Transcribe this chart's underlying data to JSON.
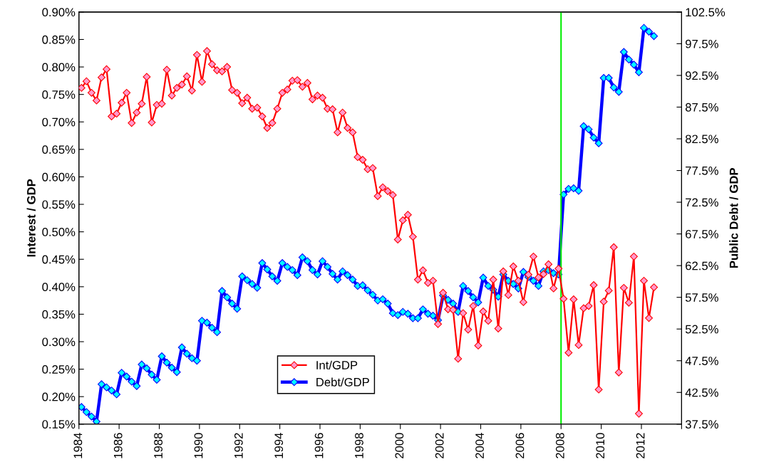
{
  "chart_data": {
    "type": "line",
    "xlabel": null,
    "ylabel": "Interest / GDP",
    "y2label": "Public Debt / GDP",
    "x": [
      1984.125,
      1984.375,
      1984.625,
      1984.875,
      1985.125,
      1985.375,
      1985.625,
      1985.875,
      1986.125,
      1986.375,
      1986.625,
      1986.875,
      1987.125,
      1987.375,
      1987.625,
      1987.875,
      1988.125,
      1988.375,
      1988.625,
      1988.875,
      1989.125,
      1989.375,
      1989.625,
      1989.875,
      1990.125,
      1990.375,
      1990.625,
      1990.875,
      1991.125,
      1991.375,
      1991.625,
      1991.875,
      1992.125,
      1992.375,
      1992.625,
      1992.875,
      1993.125,
      1993.375,
      1993.625,
      1993.875,
      1994.125,
      1994.375,
      1994.625,
      1994.875,
      1995.125,
      1995.375,
      1995.625,
      1995.875,
      1996.125,
      1996.375,
      1996.625,
      1996.875,
      1997.125,
      1997.375,
      1997.625,
      1997.875,
      1998.125,
      1998.375,
      1998.625,
      1998.875,
      1999.125,
      1999.375,
      1999.625,
      1999.875,
      2000.125,
      2000.375,
      2000.625,
      2000.875,
      2001.125,
      2001.375,
      2001.625,
      2001.875,
      2002.125,
      2002.375,
      2002.625,
      2002.875,
      2003.125,
      2003.375,
      2003.625,
      2003.875,
      2004.125,
      2004.375,
      2004.625,
      2004.875,
      2005.125,
      2005.375,
      2005.625,
      2005.875,
      2006.125,
      2006.375,
      2006.625,
      2006.875,
      2007.125,
      2007.375,
      2007.625,
      2007.875,
      2008.125,
      2008.375,
      2008.625,
      2008.875,
      2009.125,
      2009.375,
      2009.625,
      2009.875,
      2010.125,
      2010.375,
      2010.625,
      2010.875,
      2011.125,
      2011.375,
      2011.625,
      2011.875,
      2012.125,
      2012.375,
      2012.625
    ],
    "series": [
      {
        "name": "Int/GDP",
        "color": "#ff0000",
        "values": [
          0.762,
          0.774,
          0.753,
          0.739,
          0.781,
          0.796,
          0.71,
          0.715,
          0.735,
          0.753,
          0.698,
          0.717,
          0.733,
          0.782,
          0.699,
          0.731,
          0.733,
          0.795,
          0.748,
          0.762,
          0.768,
          0.783,
          0.757,
          0.822,
          0.773,
          0.829,
          0.805,
          0.794,
          0.792,
          0.8,
          0.758,
          0.753,
          0.734,
          0.744,
          0.724,
          0.726,
          0.71,
          0.689,
          0.698,
          0.724,
          0.753,
          0.759,
          0.775,
          0.776,
          0.764,
          0.771,
          0.741,
          0.748,
          0.744,
          0.724,
          0.723,
          0.681,
          0.717,
          0.689,
          0.681,
          0.636,
          0.631,
          0.614,
          0.616,
          0.565,
          0.581,
          0.574,
          0.567,
          0.486,
          0.521,
          0.531,
          0.491,
          0.413,
          0.43,
          0.407,
          0.411,
          0.332,
          0.389,
          0.359,
          0.358,
          0.269,
          0.352,
          0.322,
          0.365,
          0.293,
          0.355,
          0.338,
          0.413,
          0.324,
          0.428,
          0.385,
          0.437,
          0.411,
          0.372,
          0.422,
          0.455,
          0.417,
          0.423,
          0.441,
          0.397,
          0.433,
          0.378,
          0.28,
          0.377,
          0.294,
          0.361,
          0.365,
          0.403,
          0.213,
          0.373,
          0.393,
          0.472,
          0.244,
          0.398,
          0.371,
          0.455,
          0.169,
          0.411,
          0.343,
          0.399
        ]
      },
      {
        "name": "Debt/GDP",
        "color": "#0000ff",
        "axis": "y2",
        "values": [
          40.2,
          39.4,
          38.7,
          37.9,
          43.8,
          43.3,
          42.8,
          42.2,
          45.6,
          45.0,
          44.2,
          43.5,
          46.9,
          46.3,
          45.3,
          44.5,
          48.2,
          47.2,
          46.4,
          45.7,
          49.6,
          48.6,
          47.9,
          47.5,
          53.8,
          53.5,
          52.7,
          52.0,
          58.5,
          57.5,
          56.5,
          55.7,
          60.8,
          60.2,
          59.6,
          59.0,
          62.9,
          61.9,
          60.8,
          60.1,
          62.9,
          62.3,
          61.8,
          61.0,
          63.8,
          63.2,
          61.8,
          61.1,
          63.2,
          62.3,
          61.2,
          60.3,
          61.6,
          61.0,
          60.3,
          59.3,
          59.4,
          58.6,
          57.9,
          57.0,
          57.2,
          56.5,
          55.0,
          54.7,
          55.2,
          54.9,
          54.2,
          54.2,
          55.6,
          54.9,
          54.6,
          53.9,
          57.8,
          57.1,
          56.5,
          55.2,
          59.3,
          58.5,
          57.5,
          56.7,
          60.6,
          59.3,
          58.7,
          57.6,
          61.1,
          60.1,
          59.6,
          58.9,
          61.5,
          60.7,
          60.1,
          59.3,
          61.6,
          61.8,
          61.3,
          61.1,
          73.7,
          74.6,
          74.7,
          74.3,
          84.5,
          84.0,
          82.7,
          81.8,
          92.1,
          92.1,
          90.6,
          89.9,
          96.2,
          95.0,
          94.2,
          93.0,
          100.0,
          99.4,
          98.7
        ]
      }
    ],
    "xlim": [
      1984,
      2014
    ],
    "xticks": [
      1984,
      1986,
      1988,
      1990,
      1992,
      1994,
      1996,
      1998,
      2000,
      2002,
      2004,
      2006,
      2008,
      2010,
      2012,
      {
        "value": 2014,
        "label": null
      }
    ],
    "ylim": [
      0.15,
      0.9
    ],
    "yticks": [
      {
        "value": 0.15,
        "label": "0.15%"
      },
      {
        "value": 0.2,
        "label": "0.20%"
      },
      {
        "value": 0.25,
        "label": "0.25%"
      },
      {
        "value": 0.3,
        "label": "0.30%"
      },
      {
        "value": 0.35,
        "label": "0.35%"
      },
      {
        "value": 0.4,
        "label": "0.40%"
      },
      {
        "value": 0.45,
        "label": "0.45%"
      },
      {
        "value": 0.5,
        "label": "0.50%"
      },
      {
        "value": 0.55,
        "label": "0.55%"
      },
      {
        "value": 0.6,
        "label": "0.60%"
      },
      {
        "value": 0.65,
        "label": "0.65%"
      },
      {
        "value": 0.7,
        "label": "0.70%"
      },
      {
        "value": 0.75,
        "label": "0.75%"
      },
      {
        "value": 0.8,
        "label": "0.80%"
      },
      {
        "value": 0.85,
        "label": "0.85%"
      },
      {
        "value": 0.9,
        "label": "0.90%"
      }
    ],
    "y2lim": [
      37.5,
      102.5
    ],
    "y2ticks": [
      {
        "value": 37.5,
        "label": "37.5%"
      },
      {
        "value": 42.5,
        "label": "42.5%"
      },
      {
        "value": 47.5,
        "label": "47.5%"
      },
      {
        "value": 52.5,
        "label": "52.5%"
      },
      {
        "value": 57.5,
        "label": "57.5%"
      },
      {
        "value": 62.5,
        "label": "62.5%"
      },
      {
        "value": 67.5,
        "label": "67.5%"
      },
      {
        "value": 72.5,
        "label": "72.5%"
      },
      {
        "value": 77.5,
        "label": "77.5%"
      },
      {
        "value": 82.5,
        "label": "82.5%"
      },
      {
        "value": 87.5,
        "label": "87.5%"
      },
      {
        "value": 92.5,
        "label": "92.5%"
      },
      {
        "value": 97.5,
        "label": "97.5%"
      },
      {
        "value": 102.5,
        "label": "102.5%"
      }
    ],
    "ref_lines": [
      {
        "axis": "x",
        "value": 2008,
        "color": "#00ee00"
      }
    ],
    "grid": false,
    "legend": "bottom",
    "marker": "diamond",
    "line_style": "solid"
  }
}
